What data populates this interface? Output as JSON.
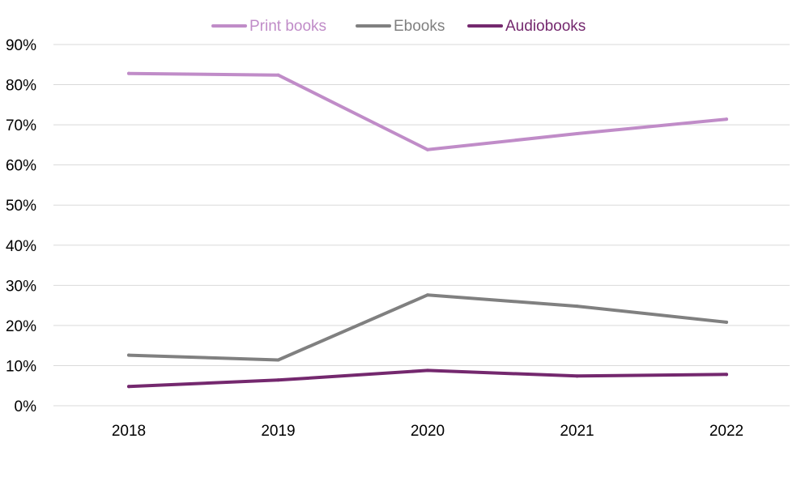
{
  "chart_data": {
    "type": "line",
    "title": "",
    "xlabel": "",
    "ylabel": "",
    "categories": [
      "2018",
      "2019",
      "2020",
      "2021",
      "2022"
    ],
    "ylim": [
      0,
      90
    ],
    "y_ticks": [
      "0%",
      "10%",
      "20%",
      "30%",
      "40%",
      "50%",
      "60%",
      "70%",
      "80%",
      "90%"
    ],
    "grid": true,
    "legend_position": "top",
    "series": [
      {
        "name": "Print books",
        "color": "#c08cc8",
        "values": [
          82.8,
          82.4,
          63.8,
          67.8,
          71.4
        ]
      },
      {
        "name": "Ebooks",
        "color": "#808080",
        "values": [
          12.6,
          11.4,
          27.6,
          24.8,
          20.8
        ]
      },
      {
        "name": "Audiobooks",
        "color": "#74286e",
        "values": [
          4.8,
          6.4,
          8.8,
          7.4,
          7.8
        ]
      }
    ]
  }
}
